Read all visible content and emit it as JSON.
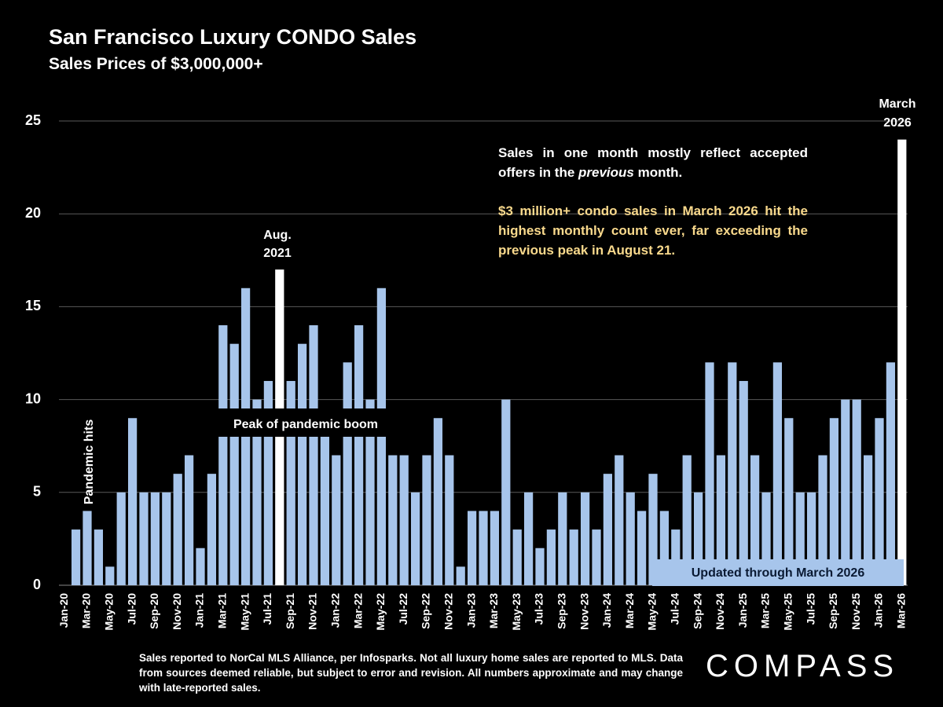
{
  "chart_data": {
    "type": "bar",
    "title": "San Francisco Luxury CONDO Sales",
    "subtitle": "Sales Prices of $3,000,000+",
    "categories": [
      "Jan-20",
      null,
      "Mar-20",
      null,
      "May-20",
      null,
      "Jul-20",
      null,
      "Sep-20",
      null,
      "Nov-20",
      null,
      "Jan-21",
      null,
      "Mar-21",
      null,
      "May-21",
      null,
      "Jul-21",
      null,
      "Sep-21",
      null,
      "Nov-21",
      null,
      "Jan-22",
      null,
      "Mar-22",
      null,
      "May-22",
      null,
      "Jul-22",
      null,
      "Sep-22",
      null,
      "Nov-22",
      null,
      "Jan-23",
      null,
      "Mar-23",
      null,
      "May-23",
      null,
      "Jul-23",
      null,
      "Sep-23",
      null,
      "Nov-23",
      null,
      "Jan-24",
      null,
      "Mar-24",
      null,
      "May-24",
      null,
      "Jul-24",
      null,
      "Sep-24",
      null,
      "Nov-24",
      null,
      "Jan-25",
      null,
      "Mar-25",
      null,
      "May-25",
      null,
      "Jul-25",
      null,
      "Sep-25",
      null,
      "Nov-25",
      null,
      "Jan-26",
      null,
      "Mar-26"
    ],
    "values": [
      0,
      3,
      4,
      3,
      1,
      5,
      9,
      5,
      5,
      5,
      6,
      7,
      2,
      6,
      14,
      13,
      16,
      10,
      11,
      17,
      11,
      13,
      14,
      8,
      7,
      12,
      14,
      10,
      16,
      7,
      7,
      5,
      7,
      9,
      7,
      1,
      4,
      4,
      4,
      10,
      3,
      5,
      2,
      3,
      5,
      3,
      5,
      3,
      6,
      7,
      5,
      4,
      6,
      4,
      3,
      7,
      5,
      12,
      7,
      12,
      11,
      7,
      5,
      12,
      9,
      5,
      5,
      7,
      9,
      10,
      10,
      7,
      9,
      12,
      24
    ],
    "colors": [
      "#a7c5eb",
      "#a7c5eb",
      "#a7c5eb",
      "#a7c5eb",
      "#a7c5eb",
      "#a7c5eb",
      "#a7c5eb",
      "#a7c5eb",
      "#a7c5eb",
      "#a7c5eb",
      "#a7c5eb",
      "#a7c5eb",
      "#a7c5eb",
      "#a7c5eb",
      "#a7c5eb",
      "#a7c5eb",
      "#a7c5eb",
      "#a7c5eb",
      "#a7c5eb",
      "#ffffff",
      "#a7c5eb",
      "#a7c5eb",
      "#a7c5eb",
      "#a7c5eb",
      "#a7c5eb",
      "#a7c5eb",
      "#a7c5eb",
      "#a7c5eb",
      "#a7c5eb",
      "#a7c5eb",
      "#a7c5eb",
      "#a7c5eb",
      "#a7c5eb",
      "#a7c5eb",
      "#a7c5eb",
      "#a7c5eb",
      "#a7c5eb",
      "#a7c5eb",
      "#a7c5eb",
      "#a7c5eb",
      "#a7c5eb",
      "#a7c5eb",
      "#a7c5eb",
      "#a7c5eb",
      "#a7c5eb",
      "#a7c5eb",
      "#a7c5eb",
      "#a7c5eb",
      "#a7c5eb",
      "#a7c5eb",
      "#a7c5eb",
      "#a7c5eb",
      "#a7c5eb",
      "#a7c5eb",
      "#a7c5eb",
      "#a7c5eb",
      "#a7c5eb",
      "#a7c5eb",
      "#a7c5eb",
      "#a7c5eb",
      "#a7c5eb",
      "#a7c5eb",
      "#a7c5eb",
      "#a7c5eb",
      "#a7c5eb",
      "#a7c5eb",
      "#a7c5eb",
      "#a7c5eb",
      "#a7c5eb",
      "#a7c5eb",
      "#a7c5eb",
      "#a7c5eb",
      "#a7c5eb",
      "#a7c5eb",
      "#ffffff"
    ],
    "ylim": [
      0,
      25
    ],
    "yticks": [
      0,
      5,
      10,
      15,
      20,
      25
    ],
    "grid": true,
    "annotations": {
      "aug_2021": [
        "Aug.",
        "2021"
      ],
      "march_2026": [
        "March",
        "2026"
      ],
      "pandemic": "Pandemic hits",
      "peak": "Peak of pandemic boom",
      "updated": "Updated through March 2026"
    },
    "note": {
      "intro": [
        "Sales in one month mostly reflect accepted offers in the ",
        "previous",
        " month."
      ],
      "highlight": "$3 million+ condo sales in March 2026 hit the highest monthly count ever, far exceeding the previous peak in August 21."
    },
    "footer": "Sales reported to NorCal MLS Alliance, per  Infosparks. Not all luxury home sales are reported to MLS. Data from sources deemed reliable, but subject to error and revision. All numbers approximate and may change with late-reported sales.",
    "logo": "COMPASS"
  }
}
